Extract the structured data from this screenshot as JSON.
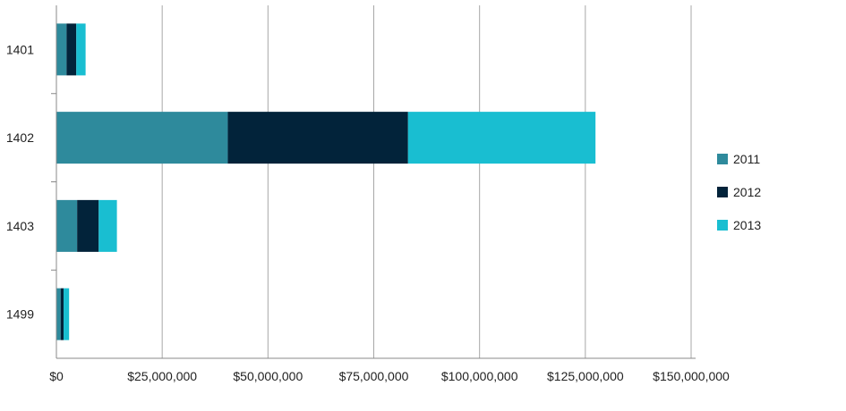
{
  "chart_data": {
    "type": "bar",
    "orientation": "horizontal",
    "stacked": true,
    "title": "",
    "xlabel": "",
    "ylabel": "",
    "categories": [
      "1401",
      "1402",
      "1403",
      "1499"
    ],
    "series": [
      {
        "name": "2011",
        "color": "#2e8a9c",
        "values": [
          2400000,
          40500000,
          4900000,
          1000000
        ]
      },
      {
        "name": "2012",
        "color": "#02233a",
        "values": [
          2300000,
          42600000,
          5100000,
          700000
        ]
      },
      {
        "name": "2013",
        "color": "#19bed1",
        "values": [
          2200000,
          44300000,
          4300000,
          1300000
        ]
      }
    ],
    "xlim": [
      0,
      150000000
    ],
    "xticks": [
      0,
      25000000,
      50000000,
      75000000,
      100000000,
      125000000,
      150000000
    ],
    "xtick_labels": [
      "$0",
      "$25,000,000",
      "$50,000,000",
      "$75,000,000",
      "$100,000,000",
      "$125,000,000",
      "$150,000,000"
    ],
    "grid": "vertical",
    "legend_position": "right"
  }
}
